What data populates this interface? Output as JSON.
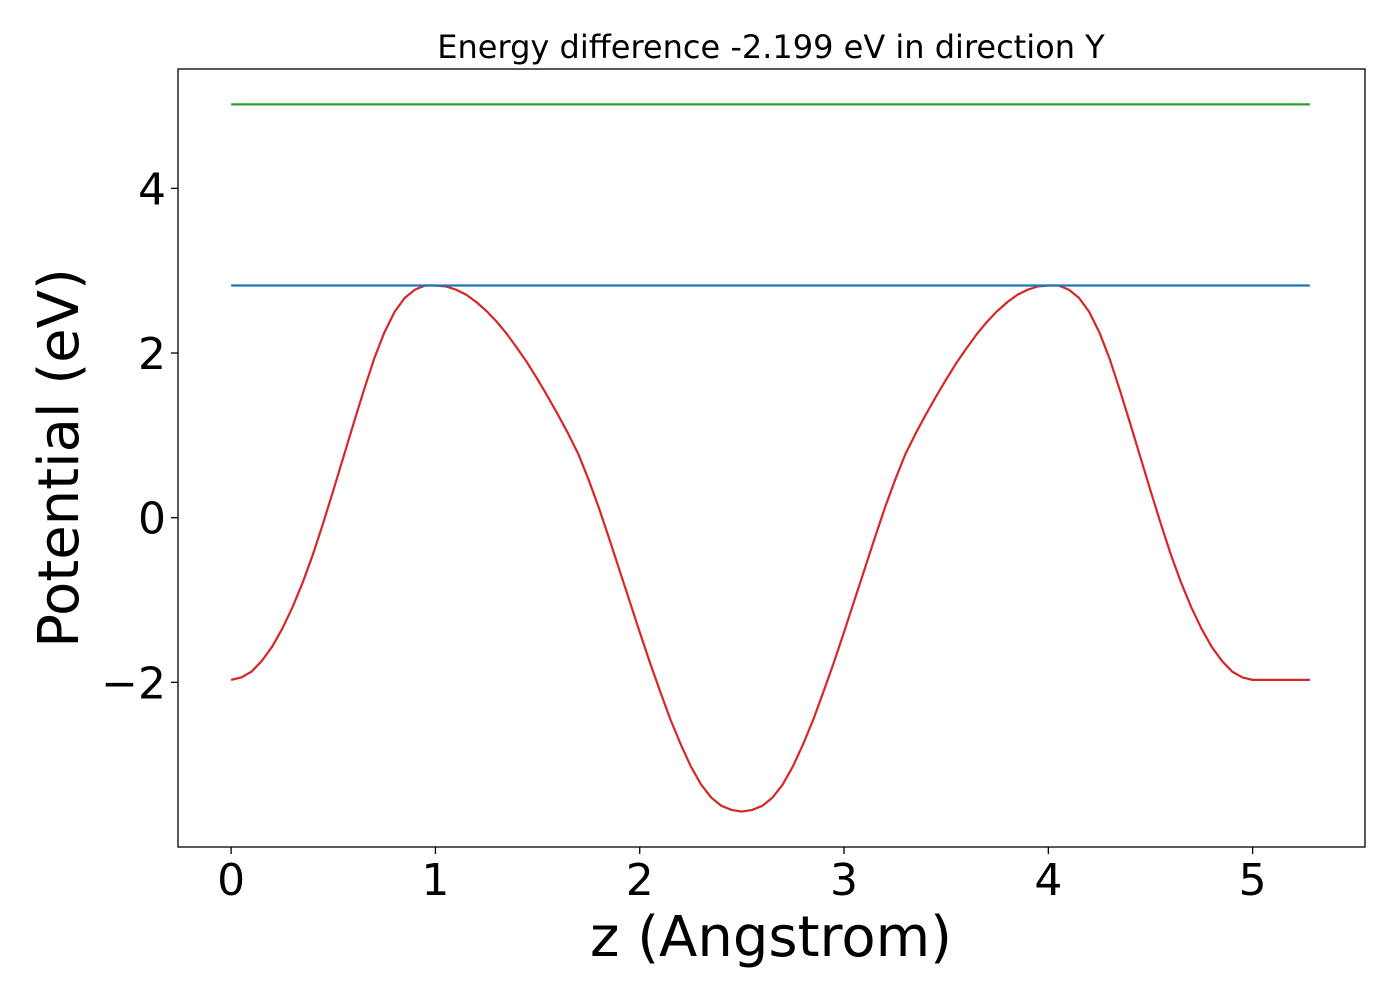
{
  "chart_data": {
    "type": "line",
    "title": "Energy difference -2.199 eV in direction Y",
    "xlabel": "z (Angstrom)",
    "ylabel": "Potential (eV)",
    "xlim": [
      -0.26,
      5.55
    ],
    "ylim": [
      -4.0,
      5.45
    ],
    "xticks": [
      0,
      1,
      2,
      3,
      4,
      5
    ],
    "yticks": [
      -2,
      0,
      2,
      4
    ],
    "xtick_labels": [
      "0",
      "1",
      "2",
      "3",
      "4",
      "5"
    ],
    "ytick_labels": [
      "−2",
      "0",
      "2",
      "4"
    ],
    "grid": false,
    "legend": "none",
    "series": [
      {
        "color": "#d62728",
        "x": [
          0.0,
          0.05,
          0.1,
          0.15,
          0.2,
          0.25,
          0.3,
          0.35,
          0.4,
          0.45,
          0.5,
          0.55,
          0.6,
          0.65,
          0.7,
          0.75,
          0.8,
          0.85,
          0.9,
          0.95,
          1.0,
          1.05,
          1.1,
          1.15,
          1.2,
          1.25,
          1.3,
          1.35,
          1.4,
          1.45,
          1.5,
          1.55,
          1.6,
          1.65,
          1.7,
          1.75,
          1.8,
          1.85,
          1.9,
          1.95,
          2.0,
          2.05,
          2.1,
          2.15,
          2.2,
          2.25,
          2.3,
          2.35,
          2.4,
          2.45,
          2.5,
          2.55,
          2.6,
          2.65,
          2.7,
          2.75,
          2.8,
          2.85,
          2.9,
          2.95,
          3.0,
          3.05,
          3.1,
          3.15,
          3.2,
          3.25,
          3.3,
          3.35,
          3.4,
          3.45,
          3.5,
          3.55,
          3.6,
          3.65,
          3.7,
          3.75,
          3.8,
          3.85,
          3.9,
          3.95,
          4.0,
          4.05,
          4.1,
          4.15,
          4.2,
          4.25,
          4.3,
          4.35,
          4.4,
          4.45,
          4.5,
          4.55,
          4.6,
          4.65,
          4.7,
          4.75,
          4.8,
          4.85,
          4.9,
          4.95,
          5.0,
          5.05,
          5.1,
          5.15,
          5.2,
          5.25,
          5.28
        ],
        "y": [
          -1.97,
          -1.94,
          -1.87,
          -1.74,
          -1.57,
          -1.35,
          -1.09,
          -0.79,
          -0.45,
          -0.07,
          0.33,
          0.74,
          1.15,
          1.55,
          1.93,
          2.25,
          2.5,
          2.67,
          2.77,
          2.82,
          2.82,
          2.81,
          2.77,
          2.71,
          2.62,
          2.51,
          2.38,
          2.23,
          2.06,
          1.88,
          1.68,
          1.47,
          1.25,
          1.02,
          0.77,
          0.46,
          0.12,
          -0.25,
          -0.63,
          -1.01,
          -1.39,
          -1.76,
          -2.11,
          -2.45,
          -2.75,
          -3.02,
          -3.24,
          -3.4,
          -3.5,
          -3.55,
          -3.57,
          -3.55,
          -3.5,
          -3.4,
          -3.24,
          -3.02,
          -2.75,
          -2.45,
          -2.11,
          -1.76,
          -1.39,
          -1.01,
          -0.63,
          -0.25,
          0.12,
          0.46,
          0.77,
          1.02,
          1.25,
          1.47,
          1.68,
          1.88,
          2.06,
          2.23,
          2.38,
          2.51,
          2.62,
          2.71,
          2.77,
          2.81,
          2.82,
          2.82,
          2.77,
          2.67,
          2.5,
          2.25,
          1.93,
          1.55,
          1.15,
          0.74,
          0.33,
          -0.07,
          -0.45,
          -0.79,
          -1.09,
          -1.35,
          -1.57,
          -1.74,
          -1.87,
          -1.94,
          -1.97,
          -1.97,
          -1.97,
          -1.97,
          -1.97,
          -1.97,
          -1.97
        ]
      },
      {
        "color": "#1f77b4",
        "x": [
          0.0,
          5.28
        ],
        "y": [
          2.82,
          2.82
        ]
      },
      {
        "color": "#2ca02c",
        "x": [
          0.0,
          5.28
        ],
        "y": [
          5.02,
          5.02
        ]
      }
    ]
  }
}
